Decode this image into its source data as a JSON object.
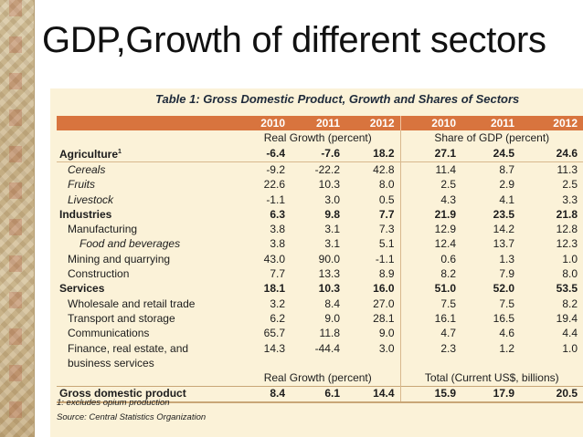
{
  "slide": {
    "title": "GDP,Growth of different sectors"
  },
  "table": {
    "caption": "Table 1: Gross Domestic Product, Growth and Shares of Sectors",
    "years": [
      "2010",
      "2011",
      "2012",
      "2010",
      "2011",
      "2012"
    ],
    "subheader_left": "Real Growth (percent)",
    "subheader_right": "Share of GDP (percent)",
    "rows": [
      {
        "label": "Agriculture",
        "sup": "1",
        "bold": true,
        "indent": 0,
        "italic": false,
        "values": [
          "-6.4",
          "-7.6",
          "18.2",
          "27.1",
          "24.5",
          "24.6"
        ]
      },
      {
        "label": "Cereals",
        "bold": false,
        "indent": 1,
        "italic": true,
        "values": [
          "-9.2",
          "-22.2",
          "42.8",
          "11.4",
          "8.7",
          "11.3"
        ]
      },
      {
        "label": "Fruits",
        "bold": false,
        "indent": 1,
        "italic": true,
        "values": [
          "22.6",
          "10.3",
          "8.0",
          "2.5",
          "2.9",
          "2.5"
        ]
      },
      {
        "label": "Livestock",
        "bold": false,
        "indent": 1,
        "italic": true,
        "values": [
          "-1.1",
          "3.0",
          "0.5",
          "4.3",
          "4.1",
          "3.3"
        ]
      },
      {
        "label": "Industries",
        "bold": true,
        "indent": 0,
        "italic": false,
        "values": [
          "6.3",
          "9.8",
          "7.7",
          "21.9",
          "23.5",
          "21.8"
        ]
      },
      {
        "label": "Manufacturing",
        "bold": false,
        "indent": 1,
        "italic": false,
        "values": [
          "3.8",
          "3.1",
          "7.3",
          "12.9",
          "14.2",
          "12.8"
        ]
      },
      {
        "label": "Food and beverages",
        "bold": false,
        "indent": 2,
        "italic": true,
        "values": [
          "3.8",
          "3.1",
          "5.1",
          "12.4",
          "13.7",
          "12.3"
        ]
      },
      {
        "label": "Mining and quarrying",
        "bold": false,
        "indent": 1,
        "italic": false,
        "values": [
          "43.0",
          "90.0",
          "-1.1",
          "0.6",
          "1.3",
          "1.0"
        ]
      },
      {
        "label": "Construction",
        "bold": false,
        "indent": 1,
        "italic": false,
        "values": [
          "7.7",
          "13.3",
          "8.9",
          "8.2",
          "7.9",
          "8.0"
        ]
      },
      {
        "label": "Services",
        "bold": true,
        "indent": 0,
        "italic": false,
        "values": [
          "18.1",
          "10.3",
          "16.0",
          "51.0",
          "52.0",
          "53.5"
        ]
      },
      {
        "label": "Wholesale and retail trade",
        "bold": false,
        "indent": 1,
        "italic": false,
        "values": [
          "3.2",
          "8.4",
          "27.0",
          "7.5",
          "7.5",
          "8.2"
        ]
      },
      {
        "label": "Transport and storage",
        "bold": false,
        "indent": 1,
        "italic": false,
        "values": [
          "6.2",
          "9.0",
          "28.1",
          "16.1",
          "16.5",
          "19.4"
        ]
      },
      {
        "label": "Communications",
        "bold": false,
        "indent": 1,
        "italic": false,
        "values": [
          "65.7",
          "11.8",
          "9.0",
          "4.7",
          "4.6",
          "4.4"
        ]
      },
      {
        "label": "Finance, real estate, and",
        "bold": false,
        "indent": 1,
        "italic": false,
        "values": [
          "14.3",
          "-44.4",
          "3.0",
          "2.3",
          "1.2",
          "1.0"
        ]
      },
      {
        "label": "business services",
        "bold": false,
        "indent": 1,
        "italic": false,
        "values": [
          "",
          "",
          "",
          "",
          "",
          ""
        ]
      }
    ],
    "subheader2_left": "Real Growth (percent)",
    "subheader2_right": "Total (Current US$, billions)",
    "gdp_row": {
      "label": "Gross domestic product",
      "values": [
        "8.4",
        "6.1",
        "14.4",
        "15.9",
        "17.9",
        "20.5"
      ]
    },
    "footnote": "1: excludes opium production",
    "source": "Source: Central Statistics Organization"
  }
}
